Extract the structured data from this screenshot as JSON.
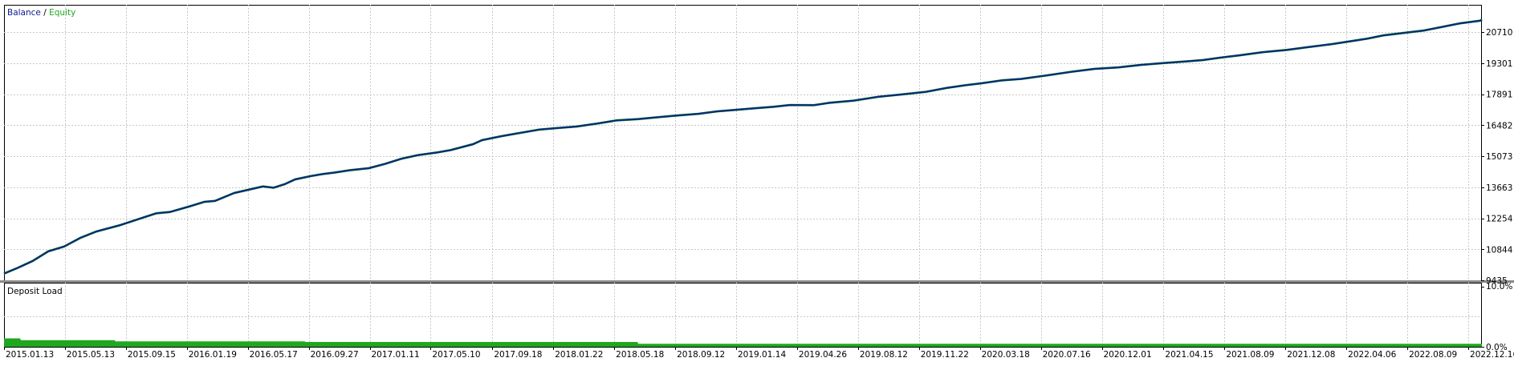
{
  "chart_data": [
    {
      "type": "line",
      "legend": [
        {
          "label": "Balance",
          "color": "#0a1b8c"
        },
        {
          "label": "/",
          "color": "#000000"
        },
        {
          "label": "Equity",
          "color": "#1fa81f"
        }
      ],
      "y_ticks": [
        9435,
        10844,
        12254,
        13663,
        15073,
        16482,
        17891,
        19301,
        20710
      ],
      "ylim": [
        9435,
        21950
      ],
      "grid": true,
      "series": [
        {
          "name": "Balance",
          "color": "#0a2a7a",
          "x_index": [
            0,
            17,
            36,
            55,
            75,
            95,
            115,
            145,
            175,
            190,
            207,
            230,
            250,
            263,
            287,
            323,
            336,
            350,
            363,
            383,
            397,
            412,
            430,
            455,
            475,
            496,
            516,
            540,
            557,
            585,
            596,
            620,
            642,
            667,
            690,
            714,
            740,
            764,
            791,
            814,
            838,
            866,
            890,
            910,
            940,
            960,
            980,
            1010,
            1030,
            1060,
            1090,
            1120,
            1150,
            1175,
            1200,
            1218,
            1245,
            1268,
            1300,
            1330,
            1360,
            1390,
            1418,
            1445,
            1475,
            1495,
            1515,
            1540,
            1570,
            1600,
            1625,
            1655,
            1680,
            1700,
            1720,
            1745,
            1770,
            1790,
            1816,
            1841,
            1843
          ],
          "values": [
            9740,
            10000,
            10320,
            10750,
            10970,
            11360,
            11650,
            11940,
            12300,
            12480,
            12540,
            12780,
            13000,
            13040,
            13400,
            13700,
            13640,
            13800,
            14020,
            14170,
            14260,
            14330,
            14430,
            14530,
            14720,
            14960,
            15120,
            15240,
            15350,
            15620,
            15800,
            15980,
            16120,
            16280,
            16350,
            16420,
            16560,
            16700,
            16760,
            16840,
            16920,
            17000,
            17110,
            17170,
            17260,
            17320,
            17400,
            17390,
            17500,
            17600,
            17770,
            17880,
            18000,
            18170,
            18300,
            18380,
            18520,
            18580,
            18740,
            18900,
            19040,
            19110,
            19220,
            19300,
            19380,
            19440,
            19540,
            19650,
            19800,
            19900,
            20020,
            20160,
            20300,
            20410,
            20560,
            20670,
            20780,
            20920,
            21110,
            21230,
            21280
          ]
        },
        {
          "name": "Equity",
          "color": "#1fa81f",
          "x_index": [
            0,
            17,
            36,
            55,
            75,
            95,
            115,
            145,
            175,
            190,
            207,
            230,
            250,
            263,
            287,
            323,
            336,
            350,
            363,
            383,
            397,
            412,
            430,
            455,
            475,
            496,
            516,
            540,
            557,
            585,
            596,
            620,
            642,
            667,
            690,
            714,
            740,
            764,
            791,
            814,
            838,
            866,
            890,
            910,
            940,
            960,
            980,
            1010,
            1030,
            1060,
            1090,
            1120,
            1150,
            1175,
            1200,
            1218,
            1245,
            1268,
            1300,
            1330,
            1360,
            1390,
            1418,
            1445,
            1475,
            1495,
            1515,
            1540,
            1570,
            1600,
            1625,
            1655,
            1680,
            1700,
            1720,
            1745,
            1770,
            1790,
            1816,
            1841,
            1843
          ],
          "values": [
            9740,
            10000,
            10320,
            10750,
            10970,
            11360,
            11650,
            11940,
            12300,
            12480,
            12540,
            12780,
            13000,
            13040,
            13400,
            13700,
            13640,
            13800,
            14020,
            14170,
            14260,
            14330,
            14430,
            14530,
            14720,
            14960,
            15120,
            15240,
            15350,
            15620,
            15800,
            15980,
            16120,
            16280,
            16350,
            16420,
            16560,
            16700,
            16760,
            16840,
            16920,
            17000,
            17110,
            17170,
            17260,
            17320,
            17400,
            17390,
            17500,
            17600,
            17770,
            17880,
            18000,
            18170,
            18300,
            18380,
            18520,
            18580,
            18740,
            18900,
            19040,
            19110,
            19220,
            19300,
            19380,
            19440,
            19540,
            19650,
            19800,
            19900,
            20020,
            20160,
            20300,
            20410,
            20560,
            20670,
            20780,
            20920,
            21110,
            21230,
            21280
          ]
        }
      ],
      "x_count": 1843
    },
    {
      "type": "area",
      "title": "Deposit Load",
      "y_tick_labels": [
        "10.0%",
        "0.0%"
      ],
      "ylim": [
        0,
        10
      ],
      "grid": true,
      "color": "#1fa81f",
      "series": [
        {
          "x_index": [
            0,
            20,
            21,
            138,
            139,
            375,
            376,
            790,
            791,
            1843
          ],
          "values": [
            1.4,
            1.4,
            1.1,
            1.1,
            0.9,
            0.9,
            0.8,
            0.8,
            0.5,
            0.5
          ]
        }
      ],
      "x_count": 1843
    }
  ],
  "x_axis": {
    "labels": [
      "2015.01.13",
      "2015.05.13",
      "2015.09.15",
      "2016.01.19",
      "2016.05.17",
      "2016.09.27",
      "2017.01.11",
      "2017.05.10",
      "2017.09.18",
      "2018.01.22",
      "2018.05.18",
      "2018.09.12",
      "2019.01.14",
      "2019.04.26",
      "2019.08.12",
      "2019.11.22",
      "2020.03.18",
      "2020.07.16",
      "2020.12.01",
      "2021.04.15",
      "2021.08.09",
      "2021.12.08",
      "2022.04.06",
      "2022.08.09",
      "2022.12.16"
    ],
    "label_index": [
      0,
      76,
      152,
      228,
      304,
      380,
      456,
      532,
      609,
      685,
      761,
      837,
      913,
      989,
      1065,
      1141,
      1217,
      1293,
      1369,
      1446,
      1522,
      1598,
      1674,
      1750,
      1826
    ]
  }
}
